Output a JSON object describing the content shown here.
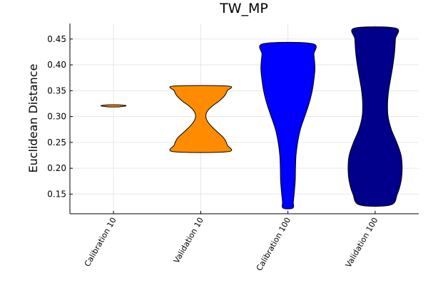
{
  "chart_data": {
    "type": "violin",
    "title": "TW_MP",
    "xlabel": "",
    "ylabel": "Euclidean Distance",
    "ylim": [
      0.112,
      0.48
    ],
    "yticks": [
      0.15,
      0.2,
      0.25,
      0.3,
      0.35,
      0.4,
      0.45
    ],
    "ytick_labels": [
      "0.15",
      "0.20",
      "0.25",
      "0.30",
      "0.35",
      "0.40",
      "0.45"
    ],
    "grid": true,
    "categories": [
      "Calibration 10",
      "Validation 10",
      "Calibration 100",
      "Validation 100"
    ],
    "series": [
      {
        "category": "Calibration 10",
        "color": "#ff8c00",
        "min": 0.3187,
        "max": 0.3227,
        "profile": [
          [
            0.3187,
            0.2
          ],
          [
            0.3195,
            0.32
          ],
          [
            0.3205,
            0.45
          ],
          [
            0.3215,
            0.45
          ],
          [
            0.3222,
            0.32
          ],
          [
            0.3227,
            0.2
          ]
        ]
      },
      {
        "category": "Validation 10",
        "color": "#ff8c00",
        "min": 0.232,
        "max": 0.359,
        "profile": [
          [
            0.232,
            1.0
          ],
          [
            0.245,
            0.98
          ],
          [
            0.258,
            0.86
          ],
          [
            0.27,
            0.62
          ],
          [
            0.28,
            0.42
          ],
          [
            0.29,
            0.26
          ],
          [
            0.3,
            0.19
          ],
          [
            0.31,
            0.24
          ],
          [
            0.32,
            0.42
          ],
          [
            0.33,
            0.68
          ],
          [
            0.34,
            0.88
          ],
          [
            0.35,
            0.98
          ],
          [
            0.359,
            1.0
          ]
        ]
      },
      {
        "category": "Calibration 100",
        "color": "#0000ff",
        "min": 0.123,
        "max": 0.441,
        "profile": [
          [
            0.123,
            0.18
          ],
          [
            0.135,
            0.2
          ],
          [
            0.15,
            0.23
          ],
          [
            0.175,
            0.27
          ],
          [
            0.2,
            0.28
          ],
          [
            0.225,
            0.3
          ],
          [
            0.25,
            0.36
          ],
          [
            0.275,
            0.46
          ],
          [
            0.3,
            0.62
          ],
          [
            0.325,
            0.78
          ],
          [
            0.35,
            0.9
          ],
          [
            0.375,
            0.97
          ],
          [
            0.395,
            1.0
          ],
          [
            0.42,
            0.96
          ],
          [
            0.441,
            0.9
          ]
        ]
      },
      {
        "category": "Validation 100",
        "color": "#00008b",
        "min": 0.129,
        "max": 0.471,
        "profile": [
          [
            0.129,
            0.57
          ],
          [
            0.15,
            0.82
          ],
          [
            0.175,
            0.96
          ],
          [
            0.2,
            1.0
          ],
          [
            0.225,
            0.96
          ],
          [
            0.25,
            0.8
          ],
          [
            0.275,
            0.6
          ],
          [
            0.3,
            0.48
          ],
          [
            0.325,
            0.46
          ],
          [
            0.35,
            0.5
          ],
          [
            0.375,
            0.58
          ],
          [
            0.4,
            0.66
          ],
          [
            0.425,
            0.72
          ],
          [
            0.45,
            0.75
          ],
          [
            0.471,
            0.76
          ]
        ]
      }
    ]
  }
}
